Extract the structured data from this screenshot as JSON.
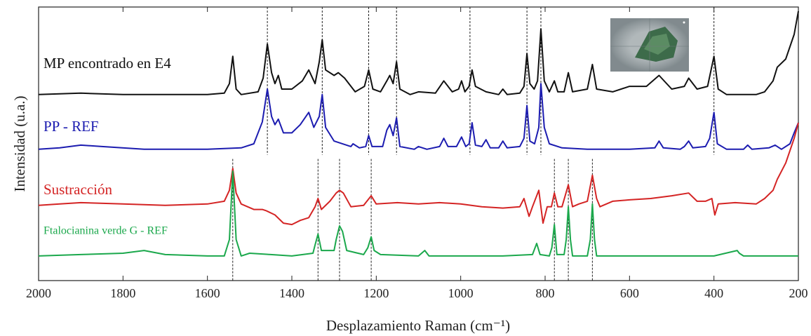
{
  "chart_data": {
    "type": "line",
    "xlabel": "Desplazamiento Raman (cm⁻¹)",
    "ylabel": "Intensidad (u.a.)",
    "xlim": [
      2000,
      200
    ],
    "xticks": [
      2000,
      1800,
      1600,
      1400,
      1200,
      1000,
      800,
      600,
      400,
      200
    ],
    "ylim": [
      0,
      100
    ],
    "reference_lines_upper": [
      1458,
      1328,
      1218,
      1152,
      978,
      843,
      810,
      400
    ],
    "reference_lines_lower": [
      1540,
      1338,
      1287,
      1212,
      778,
      745,
      688
    ],
    "series": [
      {
        "name": "MP encontrado en E4",
        "color": "#111111",
        "x": [
          2000,
          1900,
          1800,
          1700,
          1600,
          1560,
          1548,
          1540,
          1532,
          1520,
          1480,
          1468,
          1458,
          1448,
          1440,
          1432,
          1424,
          1400,
          1375,
          1360,
          1345,
          1335,
          1328,
          1320,
          1300,
          1290,
          1275,
          1250,
          1228,
          1218,
          1208,
          1190,
          1175,
          1168,
          1160,
          1152,
          1144,
          1120,
          1100,
          1060,
          1040,
          1020,
          1005,
          998,
          990,
          980,
          973,
          965,
          940,
          910,
          900,
          890,
          860,
          850,
          843,
          836,
          826,
          818,
          810,
          802,
          790,
          778,
          770,
          755,
          745,
          735,
          700,
          688,
          678,
          640,
          600,
          560,
          530,
          500,
          470,
          460,
          440,
          415,
          400,
          390,
          370,
          340,
          300,
          280,
          260,
          250,
          230,
          210,
          200
        ],
        "values": [
          68,
          68.5,
          68,
          68,
          68,
          68.5,
          72,
          82,
          70,
          68,
          69,
          74,
          86.5,
          76,
          72,
          75,
          70,
          70,
          73,
          77,
          72,
          80,
          88,
          77,
          75,
          76,
          74,
          69,
          71,
          77,
          70,
          69,
          73,
          75,
          72,
          80,
          70,
          68,
          69,
          68.5,
          73,
          69,
          70,
          73,
          69,
          71,
          77,
          71,
          69,
          68,
          70,
          68,
          68.5,
          71,
          83,
          72,
          70,
          73,
          92,
          73,
          69,
          73,
          69,
          69,
          76,
          69,
          70,
          79,
          70,
          69,
          71,
          71,
          75,
          70,
          71,
          74,
          70,
          71,
          82,
          70,
          68,
          68,
          68,
          69,
          73,
          78,
          81,
          90,
          98.5
        ]
      },
      {
        "name": "PP - REF",
        "color": "#1c1cb0",
        "x": [
          2000,
          1950,
          1900,
          1850,
          1750,
          1600,
          1520,
          1490,
          1470,
          1458,
          1448,
          1440,
          1432,
          1420,
          1400,
          1380,
          1360,
          1348,
          1335,
          1328,
          1320,
          1300,
          1260,
          1255,
          1240,
          1225,
          1218,
          1210,
          1185,
          1175,
          1168,
          1160,
          1152,
          1144,
          1110,
          1100,
          1080,
          1050,
          1040,
          1030,
          1010,
          998,
          988,
          980,
          973,
          965,
          950,
          940,
          930,
          910,
          900,
          890,
          860,
          850,
          843,
          836,
          825,
          815,
          810,
          802,
          790,
          760,
          700,
          600,
          540,
          530,
          520,
          480,
          470,
          460,
          450,
          420,
          410,
          400,
          392,
          370,
          330,
          320,
          310,
          270,
          255,
          240,
          220,
          210,
          200
        ],
        "values": [
          48,
          48.5,
          49.5,
          49,
          48,
          48,
          48.5,
          50,
          58,
          70,
          60,
          57,
          59,
          54,
          54,
          57,
          61.5,
          56,
          60,
          68,
          56,
          51,
          49,
          50,
          48.5,
          49,
          53,
          49,
          49,
          55,
          57,
          53,
          59.5,
          49,
          48,
          49,
          48,
          49,
          52,
          49,
          49,
          52.5,
          49,
          50,
          57.7,
          49.5,
          49,
          51.5,
          48.5,
          48.5,
          51,
          48.5,
          49,
          52,
          64,
          51,
          50,
          56,
          72,
          56,
          50,
          48.5,
          48,
          48,
          48.5,
          51,
          48.5,
          48,
          49,
          51,
          48.5,
          49,
          52,
          61.5,
          50,
          48,
          48,
          49.5,
          48,
          48.5,
          49.5,
          48,
          50,
          54,
          57.7
        ]
      },
      {
        "name": "Sustracción",
        "color": "#d42424",
        "x": [
          2000,
          1950,
          1900,
          1800,
          1700,
          1600,
          1560,
          1548,
          1540,
          1532,
          1520,
          1490,
          1470,
          1460,
          1440,
          1420,
          1400,
          1380,
          1360,
          1345,
          1338,
          1330,
          1310,
          1295,
          1287,
          1278,
          1260,
          1230,
          1212,
          1200,
          1150,
          1100,
          1050,
          1000,
          950,
          900,
          860,
          850,
          838,
          830,
          815,
          810,
          805,
          795,
          785,
          778,
          770,
          760,
          745,
          735,
          720,
          700,
          688,
          678,
          670,
          640,
          600,
          550,
          500,
          460,
          440,
          420,
          405,
          398,
          390,
          350,
          300,
          280,
          260,
          250,
          230,
          210,
          200
        ],
        "values": [
          27.5,
          28,
          28.5,
          28,
          27.5,
          28,
          29,
          33,
          41,
          32,
          28,
          26,
          26,
          25.5,
          24,
          21,
          20.5,
          22,
          23,
          27,
          30,
          26,
          29,
          32,
          33,
          32,
          27,
          27.5,
          31,
          28,
          28.5,
          28,
          28.5,
          28,
          27,
          26.5,
          27,
          30,
          23.5,
          27,
          33,
          27,
          21,
          27,
          27,
          32,
          27,
          27,
          35,
          27,
          28,
          29,
          38.5,
          30,
          27,
          29,
          29.5,
          30,
          31,
          32,
          29,
          29,
          30,
          24,
          28,
          28.5,
          28,
          30,
          33,
          37,
          43,
          52,
          57.7
        ]
      },
      {
        "name": "Ftalocianina verde G - REF",
        "color": "#1ba84c",
        "x": [
          2000,
          1900,
          1800,
          1750,
          1700,
          1600,
          1560,
          1548,
          1540,
          1532,
          1520,
          1500,
          1450,
          1400,
          1350,
          1345,
          1338,
          1330,
          1300,
          1295,
          1287,
          1280,
          1270,
          1230,
          1220,
          1212,
          1205,
          1190,
          1100,
          1085,
          1075,
          1000,
          900,
          830,
          820,
          812,
          790,
          784,
          778,
          772,
          755,
          750,
          745,
          740,
          735,
          700,
          693,
          688,
          683,
          678,
          600,
          500,
          400,
          345,
          340,
          330,
          250,
          200
        ],
        "values": [
          9,
          9.5,
          10,
          11,
          9.5,
          9,
          9,
          15,
          40,
          15,
          9,
          10,
          9.5,
          9,
          10,
          13,
          17,
          11,
          11,
          15,
          20,
          18,
          11,
          9.5,
          12,
          16,
          11,
          9.5,
          9,
          11,
          9,
          9,
          9,
          9.5,
          13.6,
          9.5,
          9,
          12,
          20.5,
          9.5,
          9.5,
          15,
          27,
          15,
          9,
          9,
          15,
          28,
          15,
          9,
          9,
          9,
          9,
          11,
          10,
          9,
          9,
          9
        ]
      }
    ]
  }
}
